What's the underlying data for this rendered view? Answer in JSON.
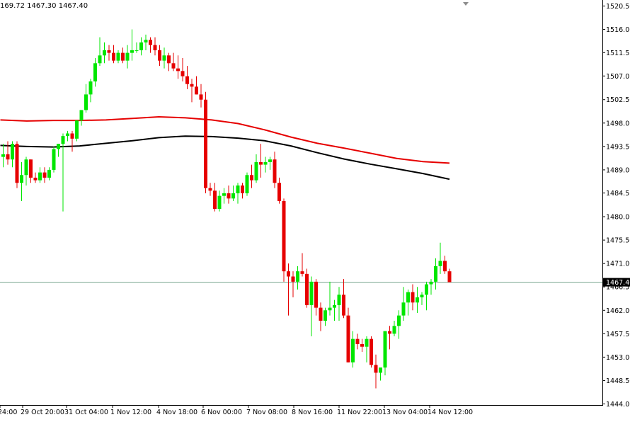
{
  "header": {
    "ohlc_text": "169.72 1467.30 1467.40"
  },
  "colors": {
    "background": "#ffffff",
    "bull": "#00e600",
    "bear": "#e60000",
    "ma_fast": "#e60000",
    "ma_slow": "#000000",
    "price_line": "#7aa58f",
    "price_tag_bg": "#000000",
    "price_tag_fg": "#ffffff",
    "axis": "#000000"
  },
  "chart_data": {
    "type": "candlestick",
    "y_ticks": [
      "1520.50",
      "1516.00",
      "1511.55",
      "1507.05",
      "1502.50",
      "1498.00",
      "1493.50",
      "1489.00",
      "1484.55",
      "1480.00",
      "1475.50",
      "1471.00",
      "1466.50",
      "1462.00",
      "1457.50",
      "1453.00",
      "1448.50",
      "1444.00"
    ],
    "x_ticks": [
      "24:00",
      "29 Oct 20:00",
      "31 Oct 04:00",
      "1 Nov 12:00",
      "4 Nov 18:00",
      "6 Nov 00:00",
      "7 Nov 08:00",
      "8 Nov 16:00",
      "11 Nov 22:00",
      "13 Nov 04:00",
      "14 Nov 12:00"
    ],
    "ylim": [
      1444.0,
      1522.5
    ],
    "current_price": "1467.40",
    "candles": [
      [
        1491.5,
        1494.0,
        1489.5,
        1492.0
      ],
      [
        1492.0,
        1494.5,
        1490.0,
        1491.0
      ],
      [
        1491.0,
        1494.5,
        1489.5,
        1494.0
      ],
      [
        1494.0,
        1494.5,
        1485.5,
        1486.5
      ],
      [
        1486.5,
        1490.5,
        1483.0,
        1488.0
      ],
      [
        1488.0,
        1491.5,
        1486.0,
        1491.0
      ],
      [
        1491.0,
        1491.0,
        1486.5,
        1487.5
      ],
      [
        1487.5,
        1488.5,
        1486.5,
        1487.0
      ],
      [
        1487.0,
        1489.5,
        1486.5,
        1488.5
      ],
      [
        1488.5,
        1489.5,
        1486.5,
        1487.5
      ],
      [
        1487.5,
        1489.5,
        1487.0,
        1489.0
      ],
      [
        1489.0,
        1493.5,
        1488.5,
        1493.0
      ],
      [
        1493.0,
        1494.0,
        1491.5,
        1494.0
      ],
      [
        1494.0,
        1496.0,
        1481.0,
        1495.5
      ],
      [
        1495.5,
        1496.5,
        1494.5,
        1496.0
      ],
      [
        1496.0,
        1496.5,
        1492.5,
        1495.0
      ],
      [
        1495.0,
        1498.5,
        1494.5,
        1498.5
      ],
      [
        1498.5,
        1500.5,
        1497.5,
        1500.5
      ],
      [
        1500.5,
        1505.5,
        1500.0,
        1503.5
      ],
      [
        1503.5,
        1506.5,
        1502.0,
        1506.0
      ],
      [
        1506.0,
        1510.5,
        1505.0,
        1509.5
      ],
      [
        1509.5,
        1514.5,
        1509.0,
        1511.0
      ],
      [
        1511.0,
        1513.5,
        1509.5,
        1512.0
      ],
      [
        1512.0,
        1513.0,
        1510.0,
        1511.5
      ],
      [
        1511.5,
        1513.0,
        1509.5,
        1510.0
      ],
      [
        1510.0,
        1512.0,
        1509.5,
        1511.5
      ],
      [
        1511.5,
        1512.5,
        1509.5,
        1510.0
      ],
      [
        1510.0,
        1513.0,
        1508.5,
        1511.5
      ],
      [
        1511.5,
        1516.0,
        1510.0,
        1512.0
      ],
      [
        1512.0,
        1513.5,
        1511.5,
        1512.0
      ],
      [
        1512.0,
        1514.5,
        1511.0,
        1513.5
      ],
      [
        1513.5,
        1515.0,
        1512.0,
        1514.0
      ],
      [
        1514.0,
        1514.5,
        1511.5,
        1513.0
      ],
      [
        1513.0,
        1514.5,
        1511.0,
        1512.0
      ],
      [
        1512.0,
        1513.0,
        1509.0,
        1510.0
      ],
      [
        1510.0,
        1512.5,
        1508.5,
        1511.0
      ],
      [
        1511.0,
        1511.5,
        1508.0,
        1509.5
      ],
      [
        1509.5,
        1511.5,
        1508.0,
        1508.5
      ],
      [
        1508.5,
        1511.0,
        1506.5,
        1508.0
      ],
      [
        1508.0,
        1510.5,
        1506.0,
        1507.0
      ],
      [
        1507.0,
        1509.0,
        1504.5,
        1505.5
      ],
      [
        1505.5,
        1506.5,
        1502.0,
        1505.0
      ],
      [
        1505.0,
        1507.0,
        1503.5,
        1503.5
      ],
      [
        1503.5,
        1505.5,
        1501.0,
        1502.5
      ],
      [
        1502.5,
        1504.0,
        1484.5,
        1485.5
      ],
      [
        1485.5,
        1486.5,
        1484.0,
        1485.0
      ],
      [
        1485.0,
        1486.5,
        1481.0,
        1481.5
      ],
      [
        1481.5,
        1485.0,
        1481.0,
        1484.0
      ],
      [
        1484.0,
        1485.5,
        1482.5,
        1484.5
      ],
      [
        1484.5,
        1486.0,
        1482.5,
        1483.5
      ],
      [
        1483.5,
        1486.0,
        1483.0,
        1484.5
      ],
      [
        1484.5,
        1486.5,
        1482.5,
        1486.0
      ],
      [
        1486.0,
        1486.5,
        1483.5,
        1484.5
      ],
      [
        1484.5,
        1488.5,
        1484.0,
        1488.0
      ],
      [
        1488.0,
        1490.0,
        1485.5,
        1487.0
      ],
      [
        1487.0,
        1492.0,
        1486.5,
        1490.5
      ],
      [
        1490.5,
        1494.0,
        1487.5,
        1490.0
      ],
      [
        1490.0,
        1491.5,
        1488.5,
        1490.5
      ],
      [
        1490.5,
        1491.5,
        1489.0,
        1491.0
      ],
      [
        1491.0,
        1492.5,
        1485.5,
        1486.5
      ],
      [
        1486.5,
        1487.5,
        1482.5,
        1483.0
      ],
      [
        1483.0,
        1483.5,
        1467.5,
        1469.5
      ],
      [
        1469.5,
        1471.0,
        1461.0,
        1468.5
      ],
      [
        1468.5,
        1469.5,
        1464.5,
        1467.5
      ],
      [
        1467.5,
        1470.5,
        1466.0,
        1469.5
      ],
      [
        1469.5,
        1473.0,
        1468.5,
        1469.0
      ],
      [
        1469.0,
        1470.0,
        1462.5,
        1463.0
      ],
      [
        1463.0,
        1468.5,
        1457.0,
        1467.5
      ],
      [
        1467.5,
        1468.0,
        1461.0,
        1462.5
      ],
      [
        1462.5,
        1463.5,
        1458.0,
        1460.0
      ],
      [
        1460.0,
        1462.5,
        1459.0,
        1462.0
      ],
      [
        1462.0,
        1467.5,
        1461.0,
        1462.5
      ],
      [
        1462.5,
        1464.0,
        1460.0,
        1463.0
      ],
      [
        1463.0,
        1466.5,
        1460.0,
        1465.0
      ],
      [
        1465.0,
        1468.0,
        1460.5,
        1461.0
      ],
      [
        1461.0,
        1462.5,
        1452.0,
        1452.0
      ],
      [
        1452.0,
        1458.0,
        1451.0,
        1456.5
      ],
      [
        1456.5,
        1457.5,
        1454.5,
        1455.5
      ],
      [
        1455.5,
        1456.5,
        1454.0,
        1455.0
      ],
      [
        1455.0,
        1457.0,
        1452.0,
        1456.5
      ],
      [
        1456.5,
        1457.0,
        1451.0,
        1451.5
      ],
      [
        1451.5,
        1453.5,
        1447.0,
        1450.0
      ],
      [
        1450.0,
        1451.0,
        1448.5,
        1451.0
      ],
      [
        1451.0,
        1458.0,
        1449.5,
        1458.0
      ],
      [
        1458.0,
        1459.0,
        1454.5,
        1457.5
      ],
      [
        1457.5,
        1460.0,
        1457.0,
        1459.0
      ],
      [
        1459.0,
        1462.0,
        1456.5,
        1461.0
      ],
      [
        1461.0,
        1466.5,
        1460.0,
        1463.5
      ],
      [
        1463.5,
        1466.0,
        1461.0,
        1465.5
      ],
      [
        1465.5,
        1467.0,
        1462.0,
        1463.5
      ],
      [
        1463.5,
        1466.5,
        1461.5,
        1464.5
      ],
      [
        1464.5,
        1465.5,
        1463.0,
        1465.0
      ],
      [
        1465.0,
        1467.5,
        1462.0,
        1467.0
      ],
      [
        1467.0,
        1468.0,
        1465.0,
        1467.5
      ],
      [
        1467.5,
        1472.0,
        1466.0,
        1470.5
      ],
      [
        1470.5,
        1475.0,
        1469.0,
        1471.5
      ],
      [
        1471.5,
        1472.5,
        1469.0,
        1469.5
      ],
      [
        1469.5,
        1470.0,
        1467.5,
        1467.4
      ]
    ],
    "ma_slow": [
      1493.7,
      1493.5,
      1493.4,
      1493.6,
      1494.1,
      1494.6,
      1495.2,
      1495.5,
      1495.4,
      1495.1,
      1494.6,
      1493.6,
      1492.3,
      1491.1,
      1490.1,
      1489.2,
      1488.3,
      1487.2
    ],
    "ma_fast": [
      1498.6,
      1498.4,
      1498.5,
      1498.5,
      1498.6,
      1498.9,
      1499.2,
      1499.0,
      1498.6,
      1497.9,
      1496.7,
      1495.3,
      1494.1,
      1493.2,
      1492.2,
      1491.2,
      1490.6,
      1490.3
    ]
  }
}
